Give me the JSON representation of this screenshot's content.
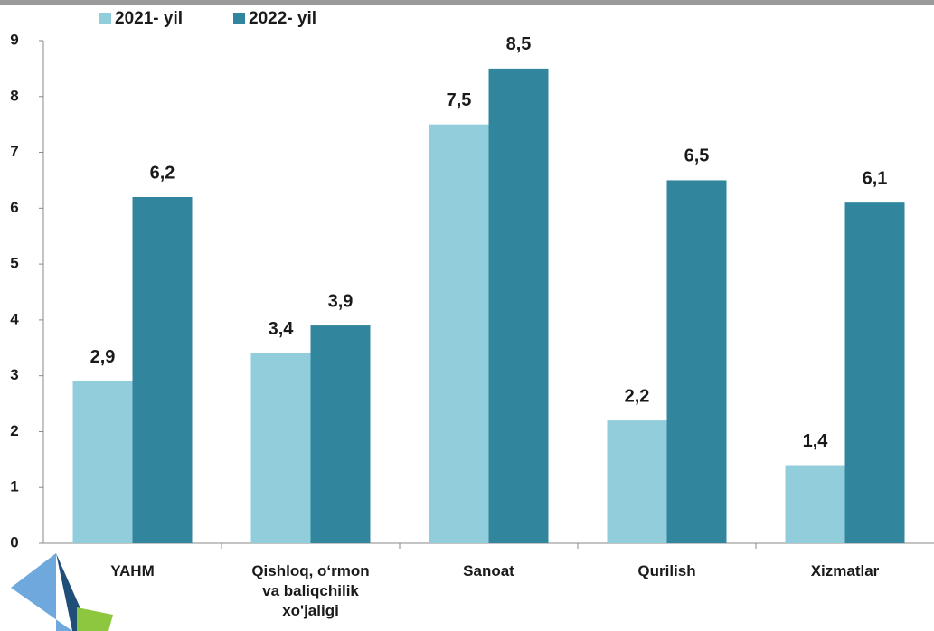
{
  "chart_data": {
    "type": "bar",
    "categories": [
      "YAHM",
      "Qishloq, o‘rmon va baliqchilik xo'jaligi",
      "Sanoat",
      "Qurilish",
      "Xizmatlar"
    ],
    "series": [
      {
        "name": "2021- yil",
        "color": "#92cddc",
        "values": [
          2.9,
          3.4,
          7.5,
          2.2,
          1.4
        ],
        "value_labels": [
          "2,9",
          "3,4",
          "7,5",
          "2,2",
          "1,4"
        ]
      },
      {
        "name": "2022- yil",
        "color": "#31859c",
        "values": [
          6.2,
          3.9,
          8.5,
          6.5,
          6.1
        ],
        "value_labels": [
          "6,2",
          "3,9",
          "8,5",
          "6,5",
          "6,1"
        ]
      }
    ],
    "ylim": [
      0,
      9
    ],
    "yticks": [
      0,
      1,
      2,
      3,
      4,
      5,
      6,
      7,
      8,
      9
    ]
  }
}
